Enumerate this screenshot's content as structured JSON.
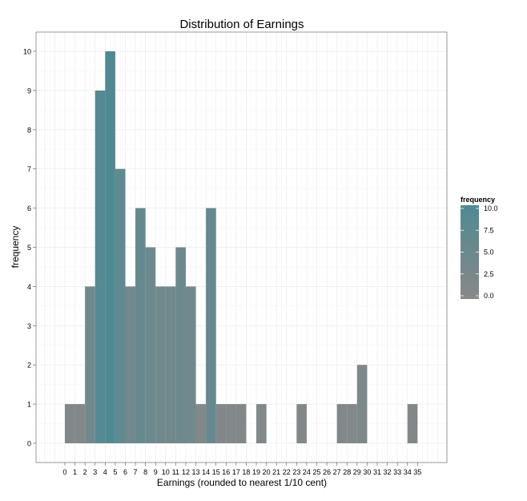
{
  "chart_data": {
    "type": "bar",
    "title": "Distribution of Earnings",
    "xlabel": "Earnings (rounded to nearest 1/10 cent)",
    "ylabel": "frequency",
    "x_ticks": [
      0,
      1,
      2,
      3,
      4,
      5,
      6,
      7,
      8,
      9,
      10,
      11,
      12,
      13,
      14,
      15,
      16,
      17,
      18,
      19,
      20,
      21,
      22,
      23,
      24,
      25,
      26,
      27,
      28,
      29,
      30,
      31,
      32,
      33,
      34,
      35
    ],
    "y_ticks": [
      0,
      1,
      2,
      3,
      4,
      5,
      6,
      7,
      8,
      9,
      10
    ],
    "ylim": [
      0,
      10
    ],
    "categories": [
      0,
      1,
      2,
      3,
      4,
      5,
      6,
      7,
      8,
      9,
      10,
      11,
      12,
      13,
      14,
      15,
      16,
      17,
      18,
      19,
      20,
      21,
      22,
      23,
      24,
      25,
      26,
      27,
      28,
      29,
      30,
      31,
      32,
      33,
      34,
      35
    ],
    "values": [
      1,
      1,
      4,
      9,
      10,
      7,
      4,
      6,
      5,
      4,
      4,
      5,
      4,
      1,
      6,
      1,
      1,
      1,
      0,
      1,
      0,
      0,
      0,
      1,
      0,
      0,
      0,
      1,
      1,
      2,
      0,
      0,
      0,
      0,
      1,
      0
    ],
    "grid": true,
    "legend": {
      "title": "frequency",
      "position": "right",
      "labels": [
        "10.0",
        "7.5",
        "5.0",
        "2.5",
        "0.0"
      ],
      "low_color": "#888888",
      "high_color": "#4f8a93"
    }
  }
}
